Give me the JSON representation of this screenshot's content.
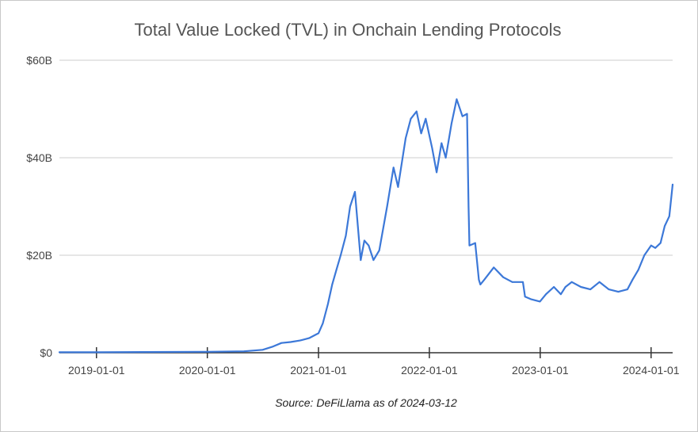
{
  "chart_data": {
    "type": "line",
    "title": "Total Value Locked (TVL) in Onchain Lending Protocols",
    "source": "Source: DeFiLlama as of 2024-03-12",
    "xlabel": "",
    "ylabel": "",
    "y_unit": "billions USD",
    "ylim": [
      0,
      60
    ],
    "y_ticks": [
      {
        "value": 0,
        "label": "$0"
      },
      {
        "value": 20,
        "label": "$20B"
      },
      {
        "value": 40,
        "label": "$40B"
      },
      {
        "value": 60,
        "label": "$60B"
      }
    ],
    "x_range": [
      "2018-09-01",
      "2024-03-12"
    ],
    "x_ticks": [
      {
        "date": "2019-01-01",
        "label": "2019-01-01"
      },
      {
        "date": "2020-01-01",
        "label": "2020-01-01"
      },
      {
        "date": "2021-01-01",
        "label": "2021-01-01"
      },
      {
        "date": "2022-01-01",
        "label": "2022-01-01"
      },
      {
        "date": "2023-01-01",
        "label": "2023-01-01"
      },
      {
        "date": "2024-01-01",
        "label": "2024-01-01"
      }
    ],
    "grid": true,
    "line_color": "#3c78d8",
    "series": [
      {
        "name": "TVL",
        "points": [
          [
            "2018-09-01",
            0.1
          ],
          [
            "2019-01-01",
            0.1
          ],
          [
            "2019-06-01",
            0.15
          ],
          [
            "2020-01-01",
            0.2
          ],
          [
            "2020-05-01",
            0.3
          ],
          [
            "2020-07-01",
            0.6
          ],
          [
            "2020-08-01",
            1.2
          ],
          [
            "2020-09-01",
            2.0
          ],
          [
            "2020-10-01",
            2.2
          ],
          [
            "2020-11-01",
            2.5
          ],
          [
            "2020-12-01",
            3.0
          ],
          [
            "2021-01-01",
            4.0
          ],
          [
            "2021-01-15",
            6.0
          ],
          [
            "2021-02-01",
            10.0
          ],
          [
            "2021-02-15",
            14.0
          ],
          [
            "2021-03-01",
            17.0
          ],
          [
            "2021-03-15",
            20.0
          ],
          [
            "2021-04-01",
            24.0
          ],
          [
            "2021-04-15",
            30.0
          ],
          [
            "2021-05-01",
            33.0
          ],
          [
            "2021-05-20",
            19.0
          ],
          [
            "2021-06-01",
            23.0
          ],
          [
            "2021-06-15",
            22.0
          ],
          [
            "2021-07-01",
            19.0
          ],
          [
            "2021-07-20",
            21.0
          ],
          [
            "2021-08-15",
            30.0
          ],
          [
            "2021-09-05",
            38.0
          ],
          [
            "2021-09-20",
            34.0
          ],
          [
            "2021-10-15",
            44.0
          ],
          [
            "2021-11-01",
            48.0
          ],
          [
            "2021-11-20",
            49.5
          ],
          [
            "2021-12-05",
            45.0
          ],
          [
            "2021-12-20",
            48.0
          ],
          [
            "2022-01-10",
            42.0
          ],
          [
            "2022-01-25",
            37.0
          ],
          [
            "2022-02-10",
            43.0
          ],
          [
            "2022-02-24",
            40.0
          ],
          [
            "2022-03-15",
            47.0
          ],
          [
            "2022-04-01",
            52.0
          ],
          [
            "2022-04-20",
            48.5
          ],
          [
            "2022-05-05",
            49.0
          ],
          [
            "2022-05-10",
            30.0
          ],
          [
            "2022-05-13",
            22.0
          ],
          [
            "2022-06-01",
            22.5
          ],
          [
            "2022-06-13",
            15.0
          ],
          [
            "2022-06-18",
            14.0
          ],
          [
            "2022-07-01",
            15.0
          ],
          [
            "2022-08-01",
            17.5
          ],
          [
            "2022-09-01",
            15.5
          ],
          [
            "2022-10-01",
            14.5
          ],
          [
            "2022-11-05",
            14.5
          ],
          [
            "2022-11-12",
            11.5
          ],
          [
            "2022-12-01",
            11.0
          ],
          [
            "2022-12-31",
            10.5
          ],
          [
            "2023-01-20",
            12.0
          ],
          [
            "2023-02-15",
            13.5
          ],
          [
            "2023-03-10",
            12.0
          ],
          [
            "2023-03-25",
            13.5
          ],
          [
            "2023-04-15",
            14.5
          ],
          [
            "2023-05-15",
            13.5
          ],
          [
            "2023-06-15",
            13.0
          ],
          [
            "2023-07-15",
            14.5
          ],
          [
            "2023-08-15",
            13.0
          ],
          [
            "2023-09-15",
            12.5
          ],
          [
            "2023-10-15",
            13.0
          ],
          [
            "2023-11-01",
            15.0
          ],
          [
            "2023-11-20",
            17.0
          ],
          [
            "2023-12-10",
            20.0
          ],
          [
            "2024-01-01",
            22.0
          ],
          [
            "2024-01-15",
            21.5
          ],
          [
            "2024-02-01",
            22.5
          ],
          [
            "2024-02-15",
            26.0
          ],
          [
            "2024-03-01",
            28.0
          ],
          [
            "2024-03-12",
            34.5
          ]
        ]
      }
    ]
  }
}
